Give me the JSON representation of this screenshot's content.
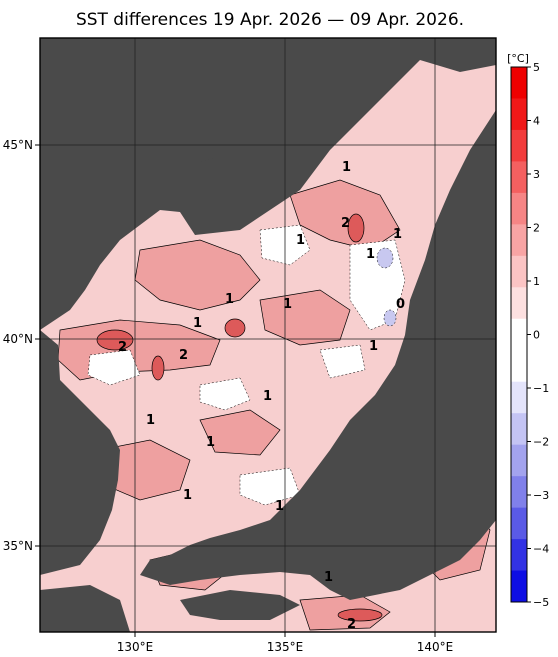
{
  "title": "SST differences 19 Apr. 2026 — 09 Apr. 2026.",
  "axes": {
    "lat_ticks": [
      "45°N",
      "40°N",
      "35°N"
    ],
    "lon_ticks": [
      "130°E",
      "135°E",
      "140°E"
    ]
  },
  "colorbar": {
    "unit": "[°C]",
    "ticks": [
      "5",
      "4",
      "3",
      "2",
      "1",
      "0",
      "−1",
      "−2",
      "−3",
      "−4",
      "−5"
    ],
    "colors": [
      "#ee0000",
      "#f01818",
      "#f23c3c",
      "#f46060",
      "#f68585",
      "#f8a4a4",
      "#fbc4c4",
      "#fde0e0",
      "#ffffff",
      "#ffffff",
      "#e4e4fb",
      "#c4c4f4",
      "#a3a3ee",
      "#8080ea",
      "#5a5ae6",
      "#3232e4",
      "#0e0ee4"
    ]
  },
  "contour_labels": [
    "1",
    "2",
    "1",
    "1",
    "1",
    "0",
    "1",
    "1",
    "1",
    "1",
    "2",
    "2",
    "1",
    "1",
    "1",
    "1",
    "1",
    "1",
    "2"
  ],
  "colors": {
    "land": "#4a4a4a",
    "sea_background": "#f7cfcf",
    "warm_patch": "#eea0a0",
    "hot_patch": "#dd5a5a",
    "cool_patch": "#ffffff",
    "cold_patch": "#c8c8f0"
  }
}
